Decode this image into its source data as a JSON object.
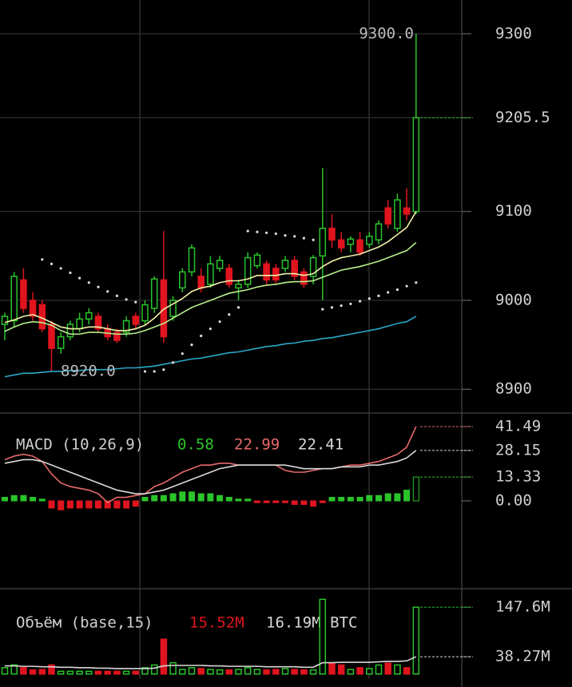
{
  "chart_data": [
    {
      "type": "candlestick",
      "open": [
        8973,
        8977,
        9023,
        9000,
        8995,
        8973,
        8946,
        8959,
        8968,
        8979,
        8982,
        8968,
        8964,
        8964,
        8982,
        8977,
        8991,
        9023,
        8982,
        9014,
        9032,
        9027,
        9018,
        9036,
        9036,
        9014,
        9018,
        9039,
        9041,
        9036,
        9036,
        9045,
        9032,
        9027,
        9050,
        9081,
        9068,
        9063,
        9068,
        9063,
        9068,
        9104,
        9081,
        9104,
        9100
      ],
      "high": [
        8986,
        9032,
        9036,
        9009,
        9000,
        8977,
        8964,
        8977,
        8986,
        8991,
        8986,
        8973,
        8968,
        8982,
        8986,
        9000,
        9027,
        9078,
        9005,
        9036,
        9063,
        9036,
        9050,
        9050,
        9041,
        9023,
        9054,
        9054,
        9045,
        9041,
        9050,
        9050,
        9036,
        9051,
        9149,
        9097,
        9077,
        9072,
        9077,
        9077,
        9090,
        9113,
        9120,
        9126,
        9300
      ],
      "low": [
        8955,
        8970,
        8986,
        8977,
        8964,
        8920,
        8940,
        8955,
        8964,
        8973,
        8964,
        8955,
        8952,
        8959,
        8968,
        8973,
        8986,
        8952,
        8977,
        9009,
        9027,
        9009,
        9014,
        9032,
        9014,
        9000,
        9014,
        9036,
        9018,
        9018,
        9032,
        9023,
        9014,
        9018,
        9000,
        9059,
        9054,
        9054,
        9050,
        9059,
        9063,
        9081,
        9077,
        9090,
        9097
      ],
      "close": [
        8982,
        9027,
        8991,
        8982,
        8968,
        8946,
        8959,
        8973,
        8979,
        8986,
        8968,
        8959,
        8955,
        8977,
        8973,
        8995,
        9024,
        8959,
        9000,
        9032,
        9059,
        9014,
        9041,
        9045,
        9018,
        9018,
        9048,
        9051,
        9023,
        9023,
        9045,
        9027,
        9018,
        9048,
        9081,
        9068,
        9059,
        9069,
        9054,
        9072,
        9086,
        9086,
        9113,
        9097,
        9205.5
      ],
      "up_color": "#2bc42b",
      "down_color": "#e0141e",
      "lines": [
        {
          "color": "#f2f2a8",
          "values": [
            8975,
            8978,
            8982,
            8984,
            8980,
            8975,
            8970,
            8968,
            8968,
            8970,
            8970,
            8968,
            8966,
            8966,
            8968,
            8972,
            8980,
            8990,
            8996,
            9002,
            9010,
            9014,
            9016,
            9020,
            9022,
            9022,
            9024,
            9028,
            9028,
            9028,
            9030,
            9030,
            9028,
            9030,
            9038,
            9044,
            9048,
            9050,
            9052,
            9056,
            9060,
            9066,
            9074,
            9082,
            9100
          ]
        },
        {
          "color": "#b9f08c",
          "values": [
            8965,
            8970,
            8974,
            8976,
            8975,
            8972,
            8966,
            8962,
            8962,
            8964,
            8964,
            8963,
            8962,
            8962,
            8963,
            8966,
            8970,
            8974,
            8980,
            8986,
            8992,
            8996,
            9000,
            9004,
            9008,
            9010,
            9012,
            9015,
            9017,
            9018,
            9020,
            9021,
            9021,
            9022,
            9026,
            9030,
            9034,
            9036,
            9038,
            9041,
            9044,
            9048,
            9052,
            9056,
            9065
          ]
        },
        {
          "color": "#2aa8c8",
          "values": [
            8914,
            8916,
            8918,
            8918,
            8919,
            8920,
            8920,
            8921,
            8921,
            8922,
            8922,
            8922,
            8923,
            8924,
            8924,
            8925,
            8926,
            8928,
            8930,
            8932,
            8934,
            8935,
            8937,
            8939,
            8941,
            8942,
            8944,
            8946,
            8948,
            8949,
            8951,
            8952,
            8954,
            8955,
            8957,
            8958,
            8960,
            8962,
            8964,
            8966,
            8968,
            8971,
            8974,
            8976,
            8982
          ]
        }
      ],
      "sar": {
        "color": "#dddddd",
        "values": [
          null,
          null,
          null,
          null,
          9046,
          9041,
          9036,
          9031,
          9025,
          9020,
          9015,
          9010,
          9005,
          9001,
          8998,
          8920,
          8920,
          8922,
          8930,
          8940,
          8950,
          8960,
          8968,
          8976,
          8984,
          8992,
          9078,
          9077,
          9076,
          9075,
          9073,
          9072,
          9070,
          9068,
          8990,
          8992,
          8994,
          8996,
          8999,
          9002,
          9005,
          9009,
          9012,
          9016,
          9020
        ]
      },
      "annotations": [
        {
          "value": 9300,
          "label": "9300.0"
        },
        {
          "value": 8920,
          "label": "8920.0"
        }
      ],
      "ylim": [
        8884,
        9338
      ],
      "yticks": [
        8900,
        9000,
        9100,
        9205.5,
        9300
      ],
      "grid": true
    },
    {
      "type": "macd",
      "title": "MACD (10,26,9)",
      "legend": [
        {
          "value": 0.58,
          "color": "#2bc42b"
        },
        {
          "value": 22.99,
          "color": "#e86a6a"
        },
        {
          "value": 22.41,
          "color": "#d8d8d8"
        }
      ],
      "histogram": [
        2,
        3,
        3,
        2,
        1,
        -4,
        -5,
        -4,
        -4,
        -4,
        -4,
        -4,
        -4,
        -4,
        -3,
        2,
        3,
        3,
        4,
        5,
        5,
        4,
        4,
        3,
        2,
        1,
        1,
        -1,
        -1,
        -1,
        -1,
        -2,
        -2,
        -3,
        -1,
        2,
        2,
        2,
        2,
        3,
        3,
        4,
        4,
        6,
        13.33
      ],
      "up_color": "#2bc42b",
      "down_color": "#e0141e",
      "series": [
        {
          "color": "#e86a6a",
          "values": [
            23,
            25,
            26,
            25,
            22,
            15,
            10,
            8,
            7,
            6,
            4,
            -1,
            2,
            2,
            3,
            4,
            8,
            10,
            13,
            16,
            18,
            20,
            20,
            21,
            21,
            20,
            20,
            20,
            20,
            20,
            17,
            16,
            16,
            17,
            18,
            18,
            19,
            20,
            20,
            21,
            22,
            24,
            26,
            30,
            41.49
          ]
        },
        {
          "color": "#d8d8d8",
          "values": [
            21,
            22,
            23,
            23,
            22,
            20,
            18,
            16,
            14,
            12,
            10,
            8,
            6,
            5,
            4,
            4,
            5,
            6,
            8,
            10,
            12,
            14,
            16,
            18,
            19,
            20,
            20,
            20,
            20,
            20,
            20,
            19,
            18,
            18,
            18,
            18,
            19,
            19,
            19,
            20,
            20,
            21,
            22,
            24,
            28.15
          ]
        }
      ],
      "ylim": [
        -43.7,
        44.6
      ],
      "yticks": [
        {
          "value": 0,
          "label": "0.00"
        },
        13.33,
        28.15,
        41.49
      ],
      "grid": false
    },
    {
      "type": "volume",
      "title": "Объём (base,15)",
      "legend": [
        {
          "value": 15.52,
          "label": "15.52M",
          "color": "#e0141e"
        },
        {
          "value": 16.19,
          "label": "16.19M BTC",
          "color": "#d8d8d8"
        }
      ],
      "values": [
        14,
        20,
        14,
        9,
        10,
        20,
        6,
        6,
        6,
        6,
        6,
        6,
        6,
        6,
        6,
        14,
        20,
        77,
        25,
        10,
        14,
        12,
        10,
        9,
        9,
        10,
        14,
        10,
        9,
        10,
        12,
        10,
        9,
        9,
        165,
        25,
        20,
        10,
        14,
        12,
        20,
        24,
        20,
        14,
        147.6
      ],
      "up_color": "#2bc42b",
      "down_color": "#e0141e",
      "ma": {
        "color": "#d8d8d8",
        "values": [
          18,
          18,
          17,
          17,
          16,
          16,
          15,
          15,
          14,
          14,
          13,
          13,
          12,
          12,
          12,
          12,
          13,
          18,
          19,
          19,
          19,
          19,
          18,
          18,
          17,
          17,
          17,
          17,
          16,
          16,
          16,
          16,
          15,
          15,
          25,
          25,
          26,
          26,
          26,
          26,
          27,
          28,
          28,
          29,
          38.27
        ]
      },
      "ylim": [
        -11,
        169
      ],
      "yticks": [
        {
          "value": 38.27,
          "label": "38.27M"
        },
        {
          "value": 147.6,
          "label": "147.6M"
        }
      ],
      "grid": false
    }
  ]
}
